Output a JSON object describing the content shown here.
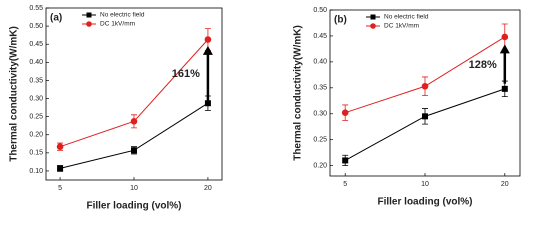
{
  "chart_data": [
    {
      "type": "line",
      "label": "(a)",
      "annotation": "161%",
      "xlabel": "Filler loading (vol%)",
      "ylabel": "Thermal conductivity(W/mK)",
      "categories": [
        "5",
        "10",
        "20"
      ],
      "ylim": [
        0.075,
        0.55
      ],
      "yticks": [
        {
          "value": 0.1,
          "label": "0.10"
        },
        0.15,
        {
          "value": 0.2,
          "label": "0.20"
        },
        0.25,
        {
          "value": 0.3,
          "label": "0.30"
        },
        0.35,
        {
          "value": 0.4,
          "label": "0.40"
        },
        0.45,
        {
          "value": 0.5,
          "label": "0.50"
        },
        0.55
      ],
      "series": [
        {
          "name": "No electric field",
          "color": "#000000",
          "marker": "square",
          "values": [
            0.107,
            0.157,
            0.287
          ],
          "errors": [
            0.008,
            0.01,
            0.02
          ]
        },
        {
          "name": "DC 1kV/mm",
          "color": "#e02020",
          "marker": "circle",
          "values": [
            0.167,
            0.237,
            0.463
          ],
          "errors": [
            0.01,
            0.018,
            0.03
          ]
        }
      ]
    },
    {
      "type": "line",
      "label": "(b)",
      "annotation": "128%",
      "xlabel": "Filler loading (vol%)",
      "ylabel": "Thermal conductivity(W/mK)",
      "categories": [
        "5",
        "10",
        "20"
      ],
      "ylim": [
        0.18,
        0.5
      ],
      "yticks": [
        {
          "value": 0.2,
          "label": "0.20"
        },
        0.25,
        {
          "value": 0.3,
          "label": "0.30"
        },
        0.35,
        {
          "value": 0.4,
          "label": "0.40"
        },
        0.45,
        {
          "value": 0.5,
          "label": "0.50"
        }
      ],
      "series": [
        {
          "name": "No electric field",
          "color": "#000000",
          "marker": "square",
          "values": [
            0.21,
            0.295,
            0.348
          ],
          "errors": [
            0.01,
            0.015,
            0.015
          ]
        },
        {
          "name": "DC 1kV/mm",
          "color": "#e02020",
          "marker": "circle",
          "values": [
            0.302,
            0.353,
            0.448
          ],
          "errors": [
            0.015,
            0.018,
            0.025
          ]
        }
      ]
    }
  ]
}
